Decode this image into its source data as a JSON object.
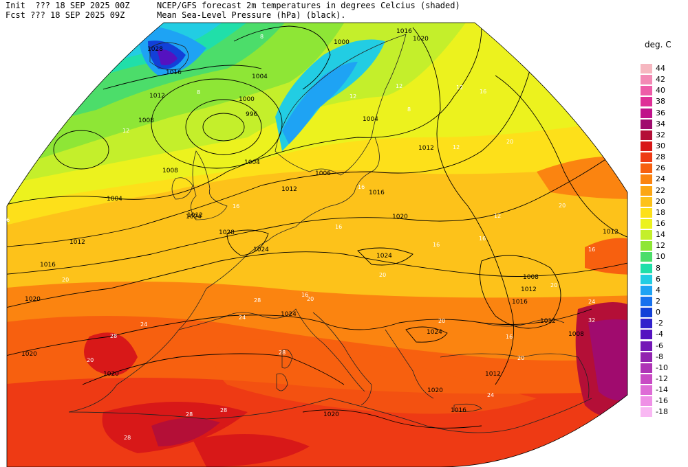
{
  "header": {
    "init_label": "Init  ??? 18 SEP 2025 00Z",
    "fcst_label": "Fcst ??? 18 SEP 2025 09Z",
    "title_line1": "NCEP/GFS forecast 2m temperatures in degrees Celcius (shaded)",
    "title_line2": "Mean Sea-Level Pressure (hPa) (black)."
  },
  "legend": {
    "unit": "deg. C",
    "levels": [
      {
        "label": "44",
        "color": "#f6b7c0"
      },
      {
        "label": "42",
        "color": "#f38ab5"
      },
      {
        "label": "40",
        "color": "#ee5ca8"
      },
      {
        "label": "38",
        "color": "#df2f97"
      },
      {
        "label": "36",
        "color": "#c0128a"
      },
      {
        "label": "34",
        "color": "#a00b6e"
      },
      {
        "label": "32",
        "color": "#b40f37"
      },
      {
        "label": "30",
        "color": "#d81818"
      },
      {
        "label": "28",
        "color": "#ee3a14"
      },
      {
        "label": "26",
        "color": "#f7600f"
      },
      {
        "label": "24",
        "color": "#fb8410"
      },
      {
        "label": "22",
        "color": "#fca614"
      },
      {
        "label": "20",
        "color": "#fdc21a"
      },
      {
        "label": "18",
        "color": "#fde01a"
      },
      {
        "label": "16",
        "color": "#ecf21e"
      },
      {
        "label": "14",
        "color": "#c4ef2b"
      },
      {
        "label": "12",
        "color": "#8ee636"
      },
      {
        "label": "10",
        "color": "#4cdd6a"
      },
      {
        "label": "8",
        "color": "#20dfa9"
      },
      {
        "label": "6",
        "color": "#22cde3"
      },
      {
        "label": "4",
        "color": "#1ea3f4"
      },
      {
        "label": "2",
        "color": "#1771ee"
      },
      {
        "label": "0",
        "color": "#1240d8"
      },
      {
        "label": "-2",
        "color": "#3222cc"
      },
      {
        "label": "-4",
        "color": "#5512c0"
      },
      {
        "label": "-6",
        "color": "#7418b6"
      },
      {
        "label": "-8",
        "color": "#9224b0"
      },
      {
        "label": "-10",
        "color": "#ae34b6"
      },
      {
        "label": "-12",
        "color": "#c84ac4"
      },
      {
        "label": "-14",
        "color": "#de6cd6"
      },
      {
        "label": "-16",
        "color": "#ef90e6"
      },
      {
        "label": "-18",
        "color": "#f9b8f3"
      }
    ]
  },
  "map": {
    "isobar_labels": [
      "1028",
      "1016",
      "1012",
      "1008",
      "1004",
      "1000",
      "996",
      "1004",
      "1008",
      "1004",
      "1012",
      "1016",
      "1020",
      "1020",
      "1020",
      "1028",
      "1024",
      "1024",
      "1024",
      "1006",
      "1012",
      "1016",
      "1020",
      "1024",
      "1020",
      "1024",
      "1012",
      "1012",
      "1008",
      "1012",
      "1016",
      "1020",
      "1016",
      "1012",
      "1000",
      "1004",
      "1008",
      "1012",
      "1016",
      "1020",
      "1012"
    ],
    "temp_labels": [
      "8",
      "8",
      "12",
      "12",
      "16",
      "16",
      "16",
      "20",
      "20",
      "24",
      "28",
      "28",
      "20",
      "16",
      "12",
      "12",
      "8",
      "16",
      "20",
      "24",
      "28",
      "28",
      "16",
      "20",
      "12",
      "16",
      "16",
      "20",
      "24",
      "20",
      "16",
      "12",
      "20",
      "24",
      "28",
      "32",
      "28",
      "20",
      "16"
    ]
  }
}
